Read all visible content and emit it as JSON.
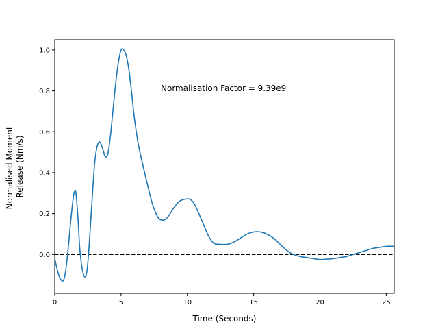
{
  "chart_data": {
    "type": "line",
    "title": "",
    "xlabel": "Time (Seconds)",
    "ylabel_lines": [
      "Normalised Moment",
      "Release (Nm/s)"
    ],
    "xlim": [
      0,
      25.6
    ],
    "ylim": [
      -0.19,
      1.05
    ],
    "xticks": [
      0,
      5,
      10,
      15,
      20,
      25
    ],
    "xtick_labels": [
      "0",
      "5",
      "10",
      "15",
      "20",
      "25"
    ],
    "yticks": [
      0.0,
      0.2,
      0.4,
      0.6,
      0.8,
      1.0
    ],
    "ytick_labels": [
      "0.0",
      "0.2",
      "0.4",
      "0.6",
      "0.8",
      "1.0"
    ],
    "grid": false,
    "line_color": "#1f77b4",
    "reference_line": {
      "y": 0.0,
      "style": "dashed",
      "color": "#000000"
    },
    "annotation": "Normalisation Factor = 9.39e9",
    "series": [
      {
        "x": [
          0,
          0.3,
          0.6,
          0.8,
          1.0,
          1.2,
          1.4,
          1.5,
          1.6,
          1.75,
          1.9,
          2.1,
          2.3,
          2.45,
          2.6,
          2.8,
          3.0,
          3.2,
          3.4,
          3.6,
          3.8,
          4.0,
          4.2,
          4.4,
          4.6,
          4.8,
          5.0,
          5.2,
          5.4,
          5.6,
          5.8,
          6.0,
          6.3,
          6.6,
          7.0,
          7.4,
          7.8,
          8.0,
          8.3,
          8.6,
          9.0,
          9.4,
          9.8,
          10.2,
          10.5,
          10.8,
          11.2,
          11.6,
          12.0,
          12.4,
          13.0,
          13.5,
          14.0,
          14.5,
          15.0,
          15.5,
          16.0,
          16.5,
          17.0,
          17.5,
          18.0,
          18.5,
          19.0,
          19.5,
          20.0,
          20.5,
          21.0,
          21.5,
          22.0,
          22.5,
          23.0,
          23.5,
          24.0,
          24.5,
          25.0,
          25.6
        ],
        "y": [
          -0.02,
          -0.1,
          -0.13,
          -0.09,
          0.02,
          0.16,
          0.28,
          0.31,
          0.3,
          0.18,
          0.02,
          -0.08,
          -0.11,
          -0.07,
          0.05,
          0.25,
          0.44,
          0.53,
          0.55,
          0.52,
          0.48,
          0.49,
          0.58,
          0.71,
          0.84,
          0.94,
          1.0,
          1.0,
          0.97,
          0.9,
          0.79,
          0.67,
          0.54,
          0.45,
          0.34,
          0.24,
          0.18,
          0.17,
          0.17,
          0.19,
          0.23,
          0.26,
          0.27,
          0.27,
          0.25,
          0.21,
          0.15,
          0.09,
          0.055,
          0.05,
          0.05,
          0.06,
          0.08,
          0.1,
          0.11,
          0.11,
          0.1,
          0.08,
          0.05,
          0.02,
          0.0,
          -0.01,
          -0.015,
          -0.02,
          -0.025,
          -0.023,
          -0.02,
          -0.015,
          -0.01,
          0.0,
          0.01,
          0.02,
          0.03,
          0.035,
          0.04,
          0.04
        ]
      }
    ]
  }
}
